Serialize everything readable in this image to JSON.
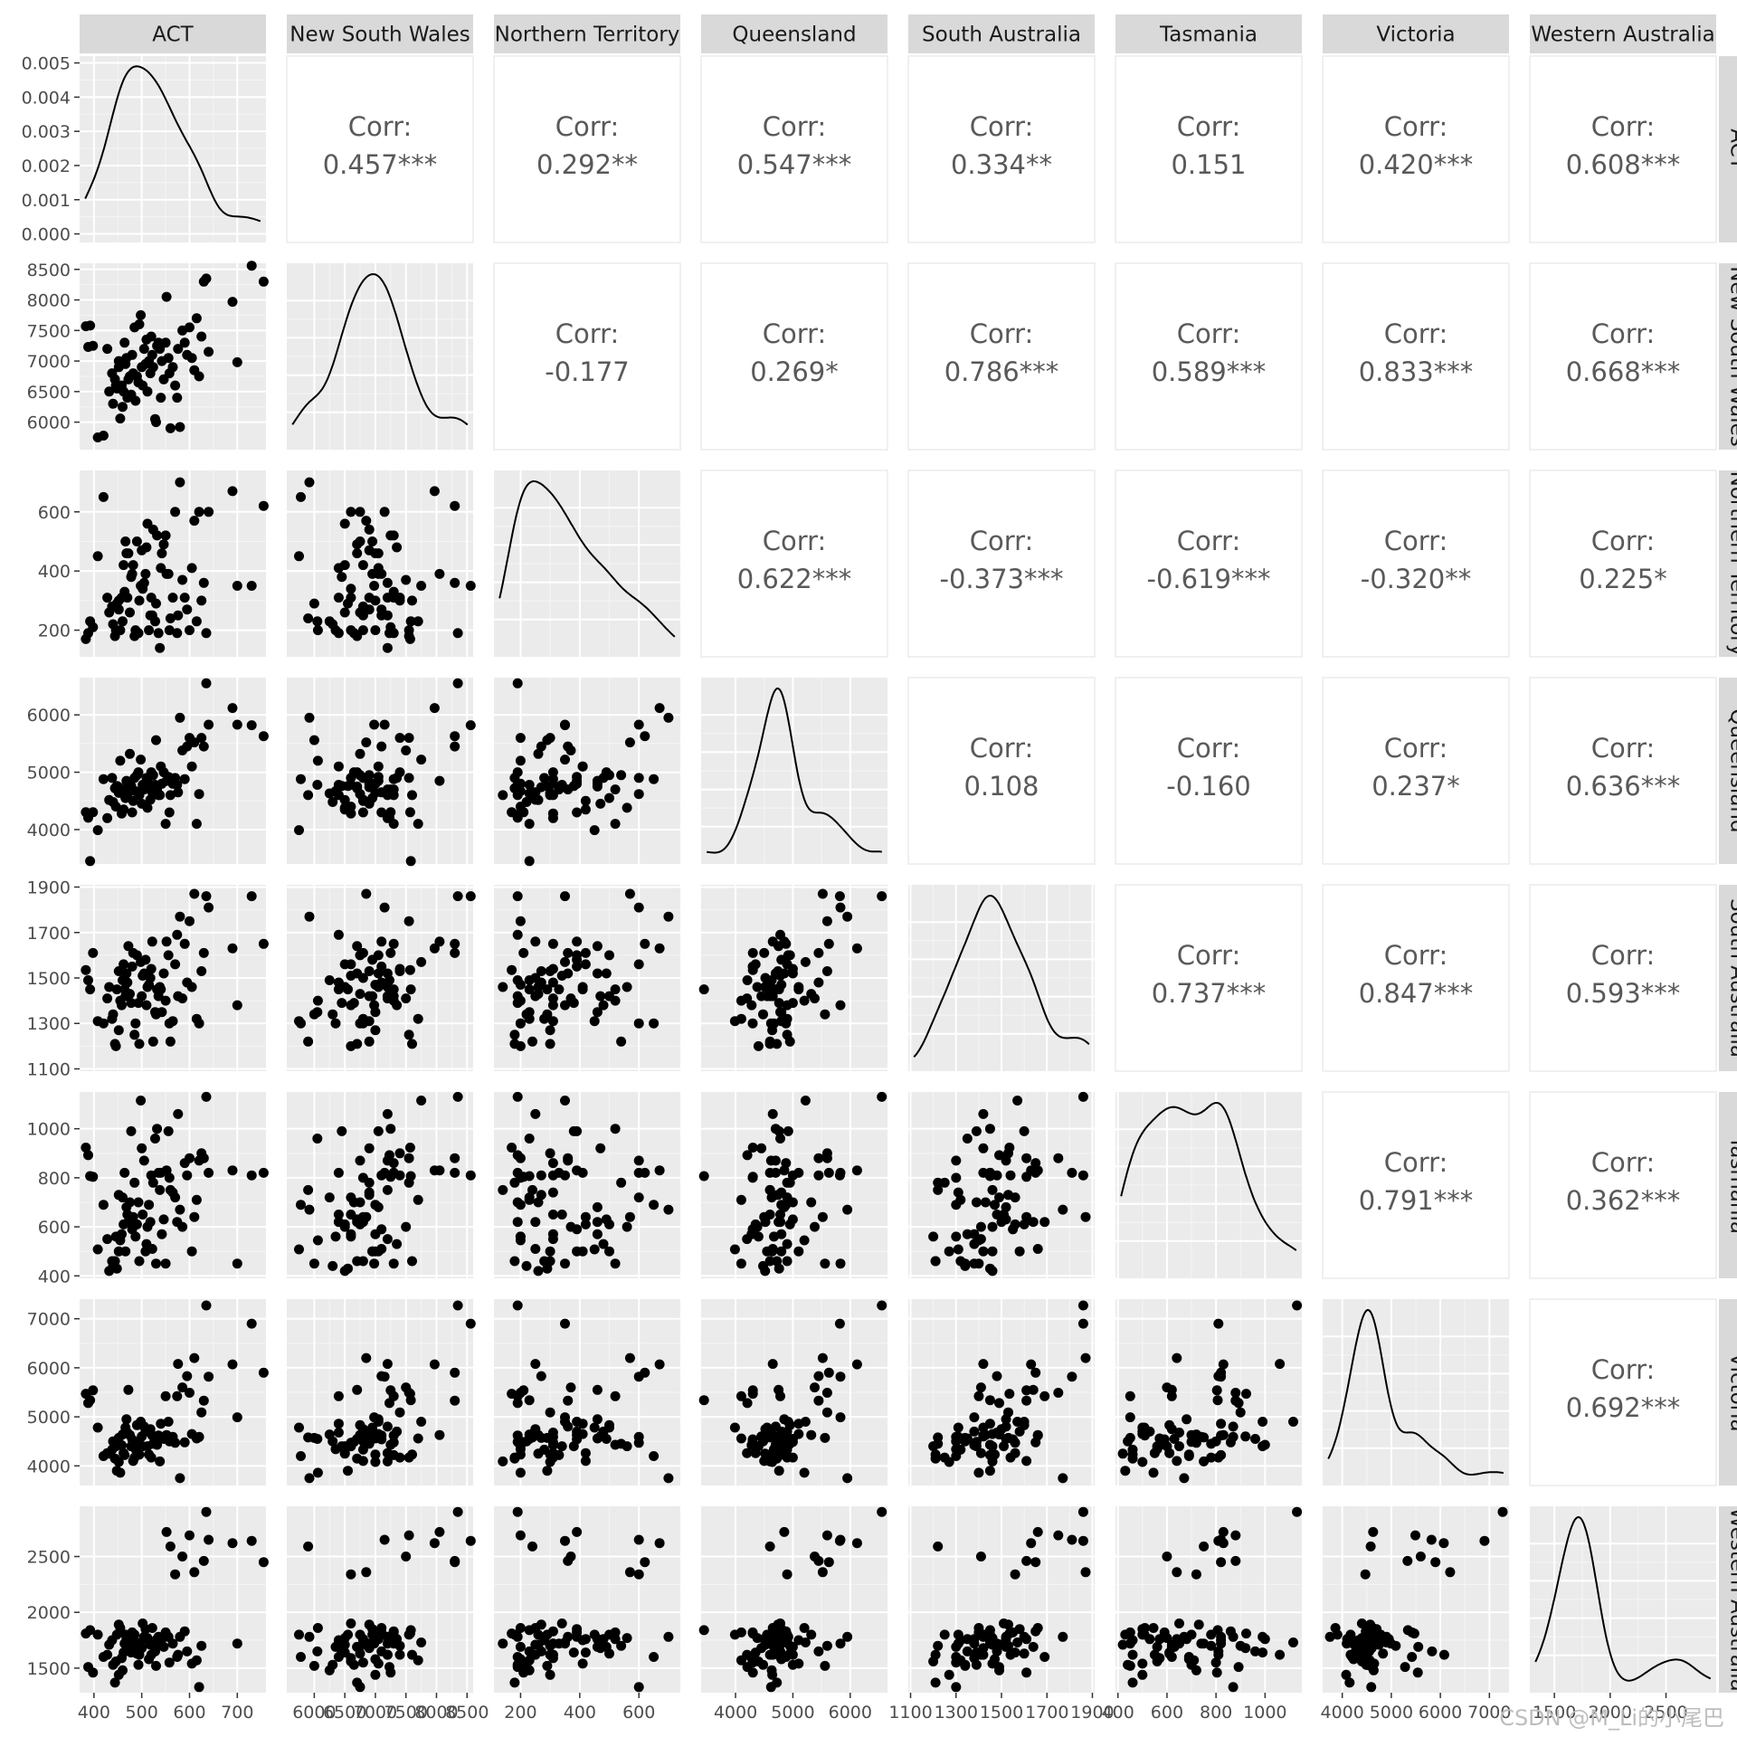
{
  "chart_data": {
    "type": "scatter",
    "title": "",
    "variables": [
      "ACT",
      "New South Wales",
      "Northern Territory",
      "Queensland",
      "South Australia",
      "Tasmania",
      "Victoria",
      "Western Australia"
    ],
    "scales": {
      "ACT": {
        "range": [
          370,
          760
        ],
        "ticks": [
          400,
          500,
          600,
          700
        ]
      },
      "New South Wales": {
        "range": [
          5550,
          8600
        ],
        "ticks": [
          6000,
          6500,
          7000,
          7500,
          8000,
          8500
        ]
      },
      "Northern Territory": {
        "range": [
          110,
          740
        ],
        "ticks": [
          200,
          400,
          600
        ]
      },
      "Queensland": {
        "range": [
          3400,
          6650
        ],
        "ticks": [
          4000,
          5000,
          6000
        ]
      },
      "South Australia": {
        "range": [
          1090,
          1910
        ],
        "ticks": [
          1100,
          1300,
          1500,
          1700,
          1900
        ]
      },
      "Tasmania": {
        "range": [
          390,
          1150
        ],
        "ticks": [
          400,
          600,
          800,
          1000
        ]
      },
      "Victoria": {
        "range": [
          3600,
          7400
        ],
        "ticks": [
          4000,
          5000,
          6000,
          7000
        ]
      },
      "Western Australia": {
        "range": [
          1280,
          2950
        ],
        "ticks": [
          1500,
          2000,
          2500
        ]
      }
    },
    "density_ticks": [
      0,
      0.001,
      0.002,
      0.003,
      0.004,
      0.005
    ],
    "density_tick_labels": [
      "0.000",
      "0.001",
      "0.002",
      "0.003",
      "0.004",
      "0.005"
    ],
    "correlations": [
      {
        "row": 0,
        "col": 1,
        "label": "0.457***"
      },
      {
        "row": 0,
        "col": 2,
        "label": "0.292**"
      },
      {
        "row": 0,
        "col": 3,
        "label": "0.547***"
      },
      {
        "row": 0,
        "col": 4,
        "label": "0.334**"
      },
      {
        "row": 0,
        "col": 5,
        "label": "0.151"
      },
      {
        "row": 0,
        "col": 6,
        "label": "0.420***"
      },
      {
        "row": 0,
        "col": 7,
        "label": "0.608***"
      },
      {
        "row": 1,
        "col": 2,
        "label": "-0.177"
      },
      {
        "row": 1,
        "col": 3,
        "label": "0.269*"
      },
      {
        "row": 1,
        "col": 4,
        "label": "0.786***"
      },
      {
        "row": 1,
        "col": 5,
        "label": "0.589***"
      },
      {
        "row": 1,
        "col": 6,
        "label": "0.833***"
      },
      {
        "row": 1,
        "col": 7,
        "label": "0.668***"
      },
      {
        "row": 2,
        "col": 3,
        "label": "0.622***"
      },
      {
        "row": 2,
        "col": 4,
        "label": "-0.373***"
      },
      {
        "row": 2,
        "col": 5,
        "label": "-0.619***"
      },
      {
        "row": 2,
        "col": 6,
        "label": "-0.320**"
      },
      {
        "row": 2,
        "col": 7,
        "label": "0.225*"
      },
      {
        "row": 3,
        "col": 4,
        "label": "0.108"
      },
      {
        "row": 3,
        "col": 5,
        "label": "-0.160"
      },
      {
        "row": 3,
        "col": 6,
        "label": "0.237*"
      },
      {
        "row": 3,
        "col": 7,
        "label": "0.636***"
      },
      {
        "row": 4,
        "col": 5,
        "label": "0.737***"
      },
      {
        "row": 4,
        "col": 6,
        "label": "0.847***"
      },
      {
        "row": 4,
        "col": 7,
        "label": "0.593***"
      },
      {
        "row": 5,
        "col": 6,
        "label": "0.791***"
      },
      {
        "row": 5,
        "col": 7,
        "label": "0.362***"
      },
      {
        "row": 6,
        "col": 7,
        "label": "0.692***"
      }
    ],
    "corr_prefix": "Corr:",
    "observations": [
      [
        383,
        7570,
        170,
        4302,
        1535,
        923,
        5470,
        1810
      ],
      [
        388,
        7230,
        190,
        4206,
        1490,
        892,
        5280,
        1510
      ],
      [
        392,
        7580,
        230,
        3450,
        1450,
        807,
        5340,
        1840
      ],
      [
        398,
        7250,
        210,
        4302,
        1610,
        804,
        5540,
        1460
      ],
      [
        408,
        5750,
        450,
        3990,
        1310,
        508,
        4780,
        1800
      ],
      [
        420,
        5780,
        650,
        4880,
        1300,
        690,
        4200,
        1600
      ],
      [
        428,
        7200,
        310,
        4200,
        1410,
        550,
        4260,
        1620
      ],
      [
        432,
        6500,
        260,
        4515,
        1460,
        420,
        4250,
        1710
      ],
      [
        438,
        6800,
        280,
        4900,
        1320,
        460,
        4330,
        1750
      ],
      [
        440,
        6300,
        220,
        4480,
        1340,
        440,
        4500,
        1530
      ],
      [
        444,
        6700,
        180,
        4720,
        1210,
        460,
        4150,
        1370
      ],
      [
        446,
        6600,
        200,
        4400,
        1200,
        560,
        4400,
        1560
      ],
      [
        448,
        6550,
        290,
        4760,
        1450,
        430,
        3900,
        1800
      ],
      [
        452,
        7000,
        300,
        4640,
        1270,
        500,
        4080,
        1440
      ],
      [
        452,
        6900,
        270,
        4740,
        1530,
        730,
        4570,
        1890
      ],
      [
        455,
        6060,
        200,
        5200,
        1400,
        545,
        3860,
        1860
      ],
      [
        458,
        6600,
        310,
        4280,
        1380,
        570,
        4420,
        1590
      ],
      [
        460,
        6250,
        230,
        4630,
        1490,
        720,
        4640,
        1480
      ],
      [
        462,
        6500,
        420,
        4350,
        1560,
        610,
        4260,
        1640
      ],
      [
        464,
        7300,
        330,
        4700,
        1450,
        820,
        4220,
        1720
      ],
      [
        466,
        6950,
        500,
        4550,
        1420,
        500,
        4780,
        1800
      ],
      [
        468,
        7050,
        460,
        4850,
        1520,
        680,
        4950,
        1760
      ],
      [
        470,
        6400,
        310,
        4600,
        1480,
        650,
        4680,
        1720
      ],
      [
        472,
        6700,
        460,
        4750,
        1640,
        620,
        5550,
        1690
      ],
      [
        475,
        6750,
        260,
        5320,
        1430,
        700,
        4630,
        1800
      ],
      [
        478,
        6450,
        380,
        4760,
        1390,
        990,
        4400,
        1640
      ],
      [
        480,
        7100,
        390,
        4300,
        1550,
        590,
        4540,
        1820
      ],
      [
        482,
        6800,
        420,
        4500,
        1610,
        640,
        4100,
        1760
      ],
      [
        485,
        7550,
        180,
        4900,
        1250,
        780,
        4170,
        1800
      ],
      [
        487,
        6350,
        200,
        4670,
        1300,
        560,
        4340,
        1690
      ],
      [
        490,
        6750,
        500,
        4950,
        1600,
        610,
        4830,
        1630
      ],
      [
        493,
        6650,
        190,
        5000,
        1390,
        700,
        4490,
        1530
      ],
      [
        495,
        7600,
        300,
        4600,
        1210,
        460,
        4230,
        1620
      ],
      [
        498,
        7750,
        350,
        5220,
        1570,
        1115,
        4900,
        1730
      ],
      [
        500,
        6900,
        470,
        4450,
        1420,
        920,
        4600,
        1680
      ],
      [
        502,
        6600,
        340,
        4780,
        1510,
        650,
        4400,
        1900
      ],
      [
        505,
        7200,
        360,
        4700,
        1520,
        870,
        4800,
        1780
      ],
      [
        508,
        6950,
        390,
        4800,
        1580,
        500,
        4700,
        1850
      ],
      [
        510,
        7350,
        480,
        4900,
        1380,
        530,
        4700,
        1760
      ],
      [
        512,
        6500,
        560,
        4380,
        1460,
        600,
        4400,
        1770
      ],
      [
        515,
        7000,
        200,
        4800,
        1470,
        690,
        4230,
        1580
      ],
      [
        518,
        6800,
        250,
        4520,
        1500,
        620,
        4750,
        1710
      ],
      [
        520,
        7400,
        310,
        5000,
        1540,
        810,
        4170,
        1620
      ],
      [
        522,
        7100,
        250,
        4650,
        1660,
        510,
        4620,
        1860
      ],
      [
        524,
        6900,
        540,
        4950,
        1220,
        780,
        4450,
        1700
      ],
      [
        528,
        6050,
        230,
        4780,
        1350,
        960,
        4550,
        1650
      ],
      [
        530,
        6000,
        290,
        5560,
        1340,
        450,
        4570,
        1520
      ],
      [
        532,
        7250,
        520,
        4700,
        1450,
        1000,
        4430,
        1760
      ],
      [
        535,
        7300,
        190,
        4600,
        1420,
        820,
        4620,
        1780
      ],
      [
        538,
        7200,
        140,
        4600,
        1460,
        750,
        4090,
        1720
      ],
      [
        540,
        6400,
        410,
        5100,
        1450,
        820,
        4860,
        1750
      ],
      [
        542,
        7000,
        460,
        4800,
        1350,
        570,
        4560,
        1760
      ],
      [
        546,
        6700,
        490,
        5000,
        1520,
        630,
        4550,
        1690
      ],
      [
        550,
        7300,
        520,
        4100,
        1400,
        450,
        5420,
        1820
      ],
      [
        552,
        8050,
        390,
        4850,
        1660,
        830,
        4630,
        2720
      ],
      [
        556,
        7050,
        390,
        4920,
        1600,
        990,
        4900,
        1780
      ],
      [
        558,
        6800,
        200,
        4300,
        1300,
        800,
        4500,
        1550
      ],
      [
        560,
        5900,
        240,
        4600,
        1220,
        750,
        4580,
        2590
      ],
      [
        565,
        6900,
        310,
        4800,
        1310,
        740,
        4590,
        1720
      ],
      [
        570,
        6600,
        600,
        4900,
        1560,
        720,
        4470,
        2340
      ],
      [
        574,
        6400,
        190,
        4780,
        1690,
        620,
        5420,
        1600
      ],
      [
        576,
        7200,
        250,
        4650,
        1420,
        1060,
        6080,
        1620
      ],
      [
        580,
        5920,
        700,
        5950,
        1770,
        670,
        3750,
        1780
      ],
      [
        585,
        7500,
        370,
        5380,
        1410,
        600,
        5600,
        2500
      ],
      [
        590,
        7300,
        310,
        4880,
        1650,
        860,
        4480,
        1830
      ],
      [
        595,
        7100,
        270,
        5450,
        1480,
        810,
        5830,
        1650
      ],
      [
        600,
        7550,
        200,
        5600,
        1750,
        880,
        5490,
        2690
      ],
      [
        605,
        7050,
        410,
        5100,
        1460,
        500,
        4650,
        1540
      ],
      [
        610,
        6850,
        570,
        5520,
        1870,
        640,
        6200,
        2360
      ],
      [
        615,
        7700,
        230,
        4100,
        1320,
        710,
        4560,
        1570
      ],
      [
        620,
        6750,
        600,
        4620,
        1300,
        870,
        4590,
        1330
      ],
      [
        625,
        7400,
        300,
        5600,
        1530,
        900,
        5090,
        1700
      ],
      [
        630,
        8300,
        360,
        5450,
        1610,
        880,
        5330,
        2460
      ],
      [
        635,
        8350,
        190,
        6550,
        1860,
        1130,
        7270,
        2900
      ],
      [
        640,
        7150,
        600,
        5830,
        1810,
        820,
        5820,
        2650
      ],
      [
        690,
        7970,
        670,
        6120,
        1630,
        830,
        6070,
        2620
      ],
      [
        700,
        6980,
        350,
        5830,
        1380,
        450,
        4990,
        1720
      ],
      [
        730,
        8560,
        350,
        5820,
        1860,
        810,
        6900,
        2640
      ],
      [
        755,
        8300,
        620,
        5630,
        1650,
        820,
        5900,
        2450
      ]
    ]
  },
  "watermark": "CSDN @M_Li的小尾巴"
}
